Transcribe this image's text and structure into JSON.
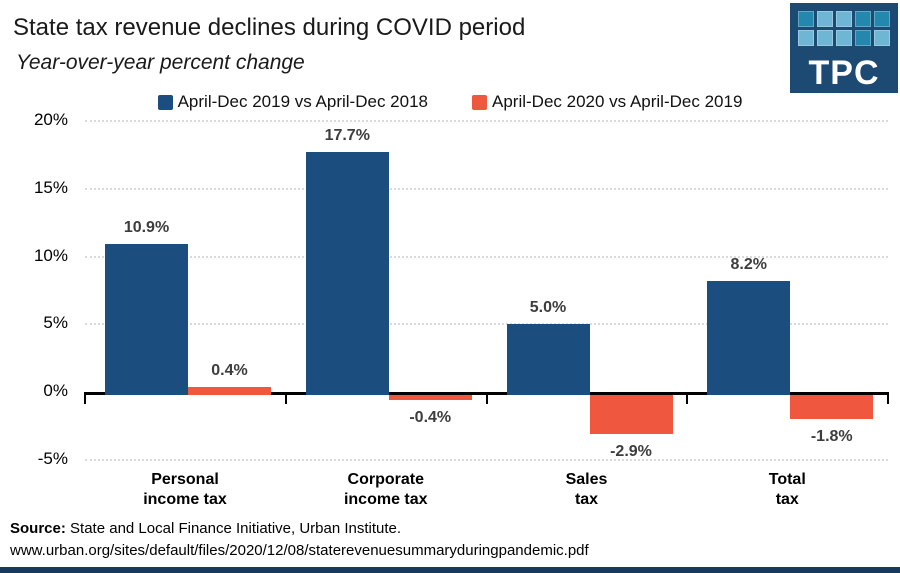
{
  "page": {
    "background": "#FFFFFF",
    "accent_bar_color": "#16395D"
  },
  "header": {
    "title": "State tax revenue declines during COVID period",
    "subtitle": "Year-over-year percent change"
  },
  "logo": {
    "text": "TPC",
    "bg_color": "#1C4A73",
    "square_colors_row1": [
      "#2387AE",
      "#6FB6D4",
      "#6FB6D4",
      "#2387AE",
      "#2387AE"
    ],
    "square_colors_row2": [
      "#6FB6D4",
      "#6FB6D4",
      "#6FB6D4",
      "#2387AE",
      "#6FB6D4"
    ]
  },
  "chart_data": {
    "type": "bar",
    "title": "State tax revenue declines during COVID period",
    "subtitle": "Year-over-year percent change",
    "categories": [
      {
        "line1": "Personal",
        "line2": "income tax"
      },
      {
        "line1": "Corporate",
        "line2": "income tax"
      },
      {
        "line1": "Sales",
        "line2": "tax"
      },
      {
        "line1": "Total",
        "line2": "tax"
      }
    ],
    "series": [
      {
        "name": "April-Dec 2019 vs April-Dec 2018",
        "color": "#1B4E7E",
        "values": [
          10.9,
          17.7,
          5.0,
          8.2
        ],
        "labels": [
          "10.9%",
          "17.7%",
          "5.0%",
          "8.2%"
        ]
      },
      {
        "name": "April-Dec 2020 vs April-Dec 2019",
        "color": "#F0573F",
        "values": [
          0.4,
          -0.4,
          -2.9,
          -1.8
        ],
        "labels": [
          "0.4%",
          "-0.4%",
          "-2.9%",
          "-1.8%"
        ]
      }
    ],
    "ylim": [
      -5,
      20
    ],
    "yticks": [
      {
        "value": 20,
        "label": "20%"
      },
      {
        "value": 15,
        "label": "15%"
      },
      {
        "value": 10,
        "label": "10%"
      },
      {
        "value": 5,
        "label": "5%"
      },
      {
        "value": 0,
        "label": "0%"
      },
      {
        "value": -5,
        "label": "-5%"
      }
    ],
    "grid": "horizontal-dotted",
    "legend_position": "top-center"
  },
  "footer": {
    "source_label": "Source:",
    "source_text": "State and Local Finance Initiative, Urban Institute.",
    "url": "www.urban.org/sites/default/files/2020/12/08/staterevenuesummaryduringpandemic.pdf"
  }
}
